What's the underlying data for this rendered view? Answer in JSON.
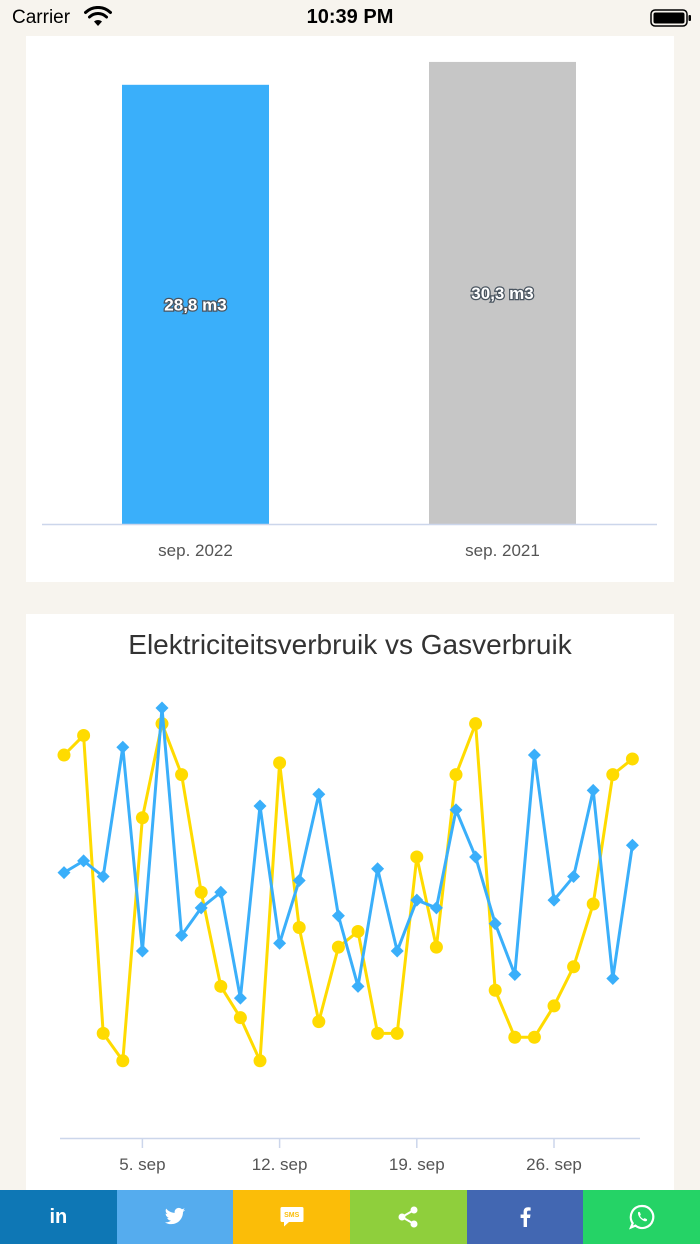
{
  "status_bar": {
    "carrier": "Carrier",
    "time": "10:39 PM"
  },
  "chart_data": [
    {
      "type": "bar",
      "categories": [
        "sep. 2022",
        "sep. 2021"
      ],
      "values": [
        28.8,
        30.3
      ],
      "value_labels": [
        "28,8 m3",
        "30,3 m3"
      ],
      "colors": [
        "#3aaffa",
        "#c6c6c6"
      ],
      "ylim": [
        0,
        32
      ]
    },
    {
      "type": "line",
      "title": "Elektriciteitsverbruik vs Gasverbruik",
      "x_start": "2022-09-01",
      "x_end": "2022-09-30",
      "xticks": [
        "5. sep",
        "12. sep",
        "19. sep",
        "26. sep"
      ],
      "series": [
        {
          "color": "#ffdb00",
          "marker": "circle",
          "values": [
            0.88,
            0.93,
            0.17,
            0.1,
            0.72,
            0.96,
            0.83,
            0.53,
            0.29,
            0.21,
            0.1,
            0.86,
            0.44,
            0.2,
            0.39,
            0.43,
            0.17,
            0.17,
            0.62,
            0.39,
            0.83,
            0.96,
            0.28,
            0.16,
            0.16,
            0.24,
            0.34,
            0.5,
            0.83,
            0.87
          ]
        },
        {
          "color": "#3aaffa",
          "marker": "diamond",
          "values": [
            0.58,
            0.61,
            0.57,
            0.9,
            0.38,
            1.0,
            0.42,
            0.49,
            0.53,
            0.26,
            0.75,
            0.4,
            0.56,
            0.78,
            0.47,
            0.29,
            0.59,
            0.38,
            0.51,
            0.49,
            0.74,
            0.62,
            0.45,
            0.32,
            0.88,
            0.51,
            0.57,
            0.79,
            0.31,
            0.65
          ]
        }
      ]
    }
  ],
  "share": {
    "linkedin": "in",
    "sms": "SMS"
  },
  "icons": [
    "wifi-icon",
    "battery-icon",
    "twitter-icon",
    "sms-icon",
    "share-icon",
    "facebook-icon",
    "whatsapp-icon"
  ]
}
